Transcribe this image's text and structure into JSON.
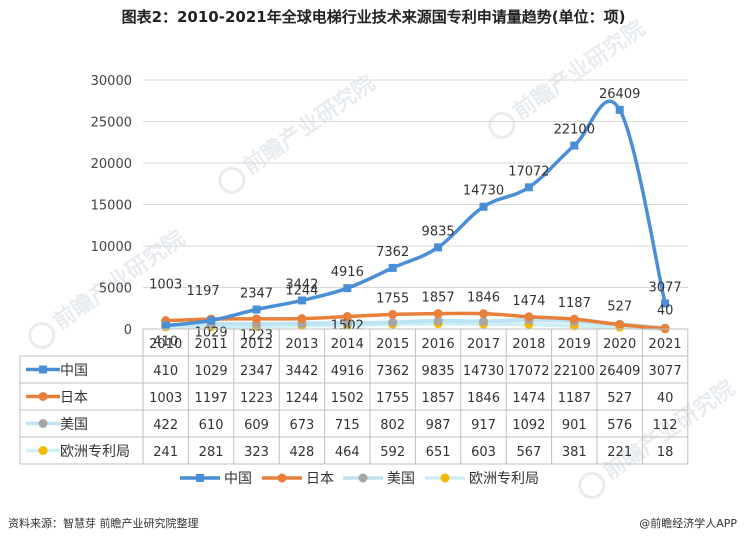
{
  "title": "图表2：2010-2021年全球电梯行业技术来源国专利申请量趋势(单位：项)",
  "watermark": "前瞻产业研究院",
  "source": "资料来源：智慧芽 前瞻产业研究院整理",
  "credit": "@前瞻经济学人APP",
  "colors": {
    "中国": "#4a8fd6",
    "日本": "#e8803b",
    "美国": "#a6a6a6",
    "欧洲专利局": "#f5b800",
    "grid": "#d9d9d9"
  },
  "chart_data": {
    "type": "line",
    "categories": [
      "2010",
      "2011",
      "2012",
      "2013",
      "2014",
      "2015",
      "2016",
      "2017",
      "2018",
      "2019",
      "2020",
      "2021"
    ],
    "ylim": [
      0,
      30000
    ],
    "yticks": [
      0,
      5000,
      10000,
      15000,
      20000,
      25000,
      30000
    ],
    "legend_position": "bottom",
    "series": [
      {
        "name": "中国",
        "values": [
          410,
          1029,
          2347,
          3442,
          4916,
          7362,
          9835,
          14730,
          17072,
          22100,
          26409,
          3077
        ]
      },
      {
        "name": "日本",
        "values": [
          1003,
          1197,
          1223,
          1244,
          1502,
          1755,
          1857,
          1846,
          1474,
          1187,
          527,
          40
        ]
      },
      {
        "name": "美国",
        "values": [
          422,
          610,
          609,
          673,
          715,
          802,
          987,
          917,
          1092,
          901,
          576,
          112
        ]
      },
      {
        "name": "欧洲专利局",
        "values": [
          241,
          281,
          323,
          428,
          464,
          592,
          651,
          603,
          567,
          381,
          221,
          18
        ]
      }
    ]
  }
}
